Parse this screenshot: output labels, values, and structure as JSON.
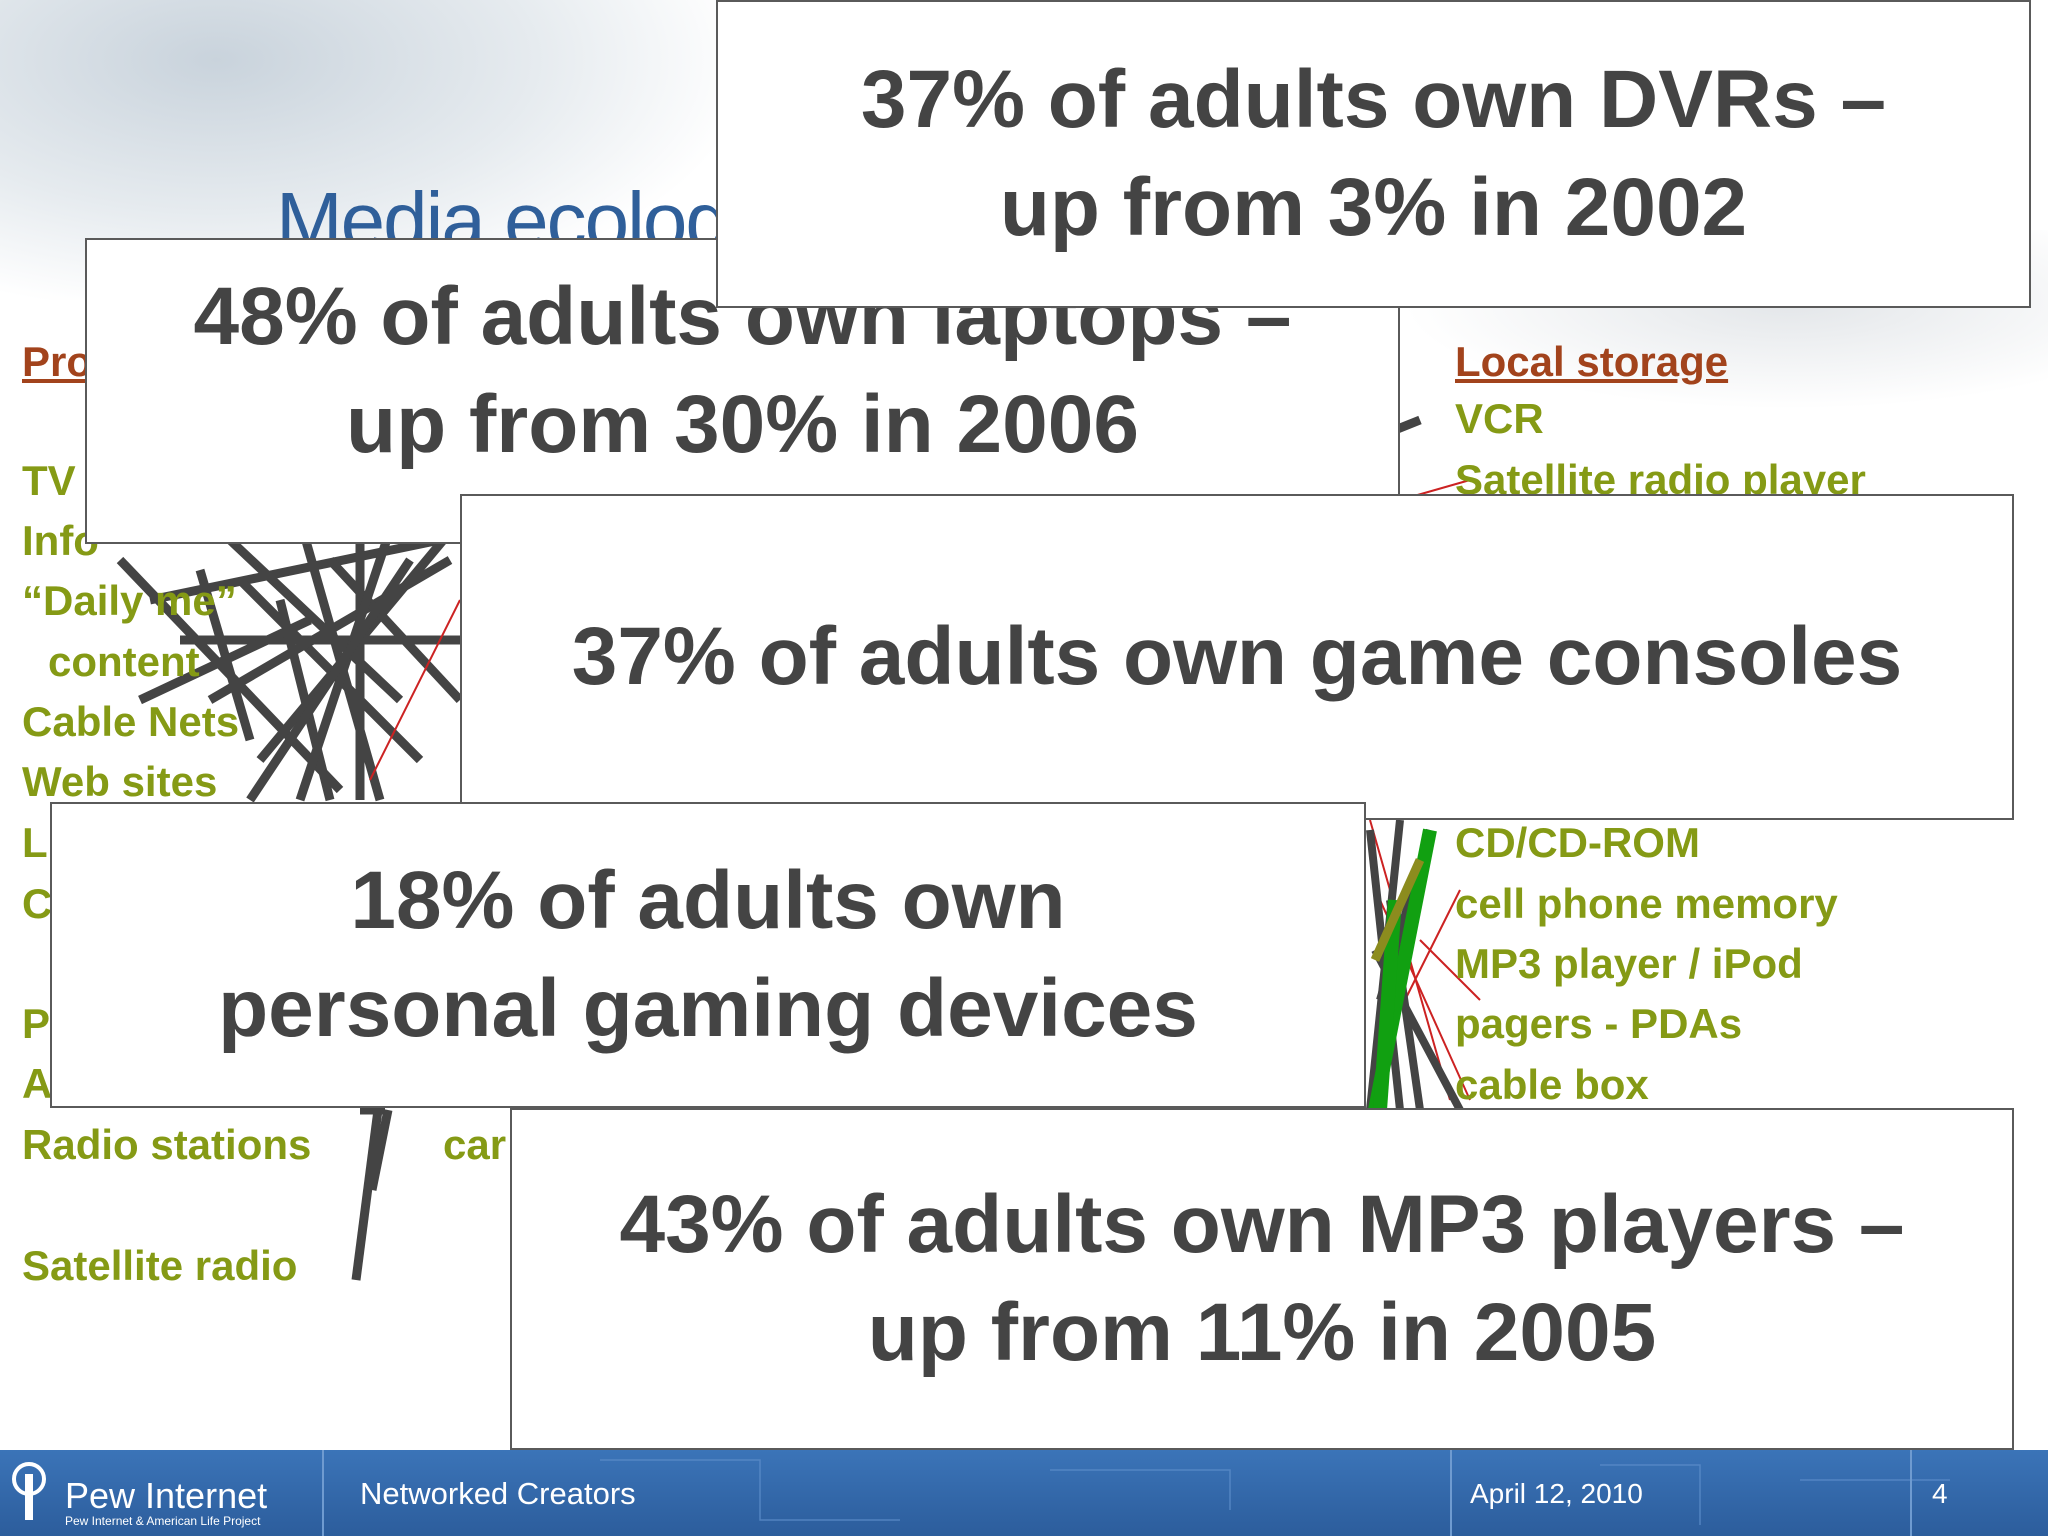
{
  "slide": {
    "title_partial": "Media ecolog",
    "col_left_head": "Pro",
    "col_right_head": "Local storage",
    "left_items": [
      "TV",
      "Info",
      "“Daily me”",
      "content",
      "Cable Nets",
      "Web sites",
      "L",
      "C",
      "P",
      "A",
      "Radio stations",
      "Satellite radio"
    ],
    "mid_fragment": "car",
    "right_items": [
      "VCR",
      "Satellite radio player",
      "CD/CD-ROM",
      "cell phone memory",
      "MP3 player / iPod",
      "pagers - PDAs",
      "cable box"
    ]
  },
  "callouts": {
    "dvr": [
      "37% of adults own DVRs –",
      "up from 3% in 2002"
    ],
    "laptops": [
      "48% of adults own laptops –",
      "up from 30% in 2006"
    ],
    "consoles": [
      "37% of adults own game consoles"
    ],
    "gaming": [
      "18% of adults own",
      "personal gaming devices"
    ],
    "mp3": [
      "43% of adults own MP3 players –",
      "up from 11% in 2005"
    ]
  },
  "footer": {
    "brand": "Pew Internet",
    "brand_tagline": "Pew Internet & American Life Project",
    "title": "Networked Creators",
    "date": "April 12, 2010",
    "page": "4"
  },
  "colors": {
    "heading": "#a2431c",
    "item": "#859a15",
    "callout_text": "#444444",
    "footer_bg": "#2c5d9c",
    "title_blue": "#2f5f9a"
  }
}
